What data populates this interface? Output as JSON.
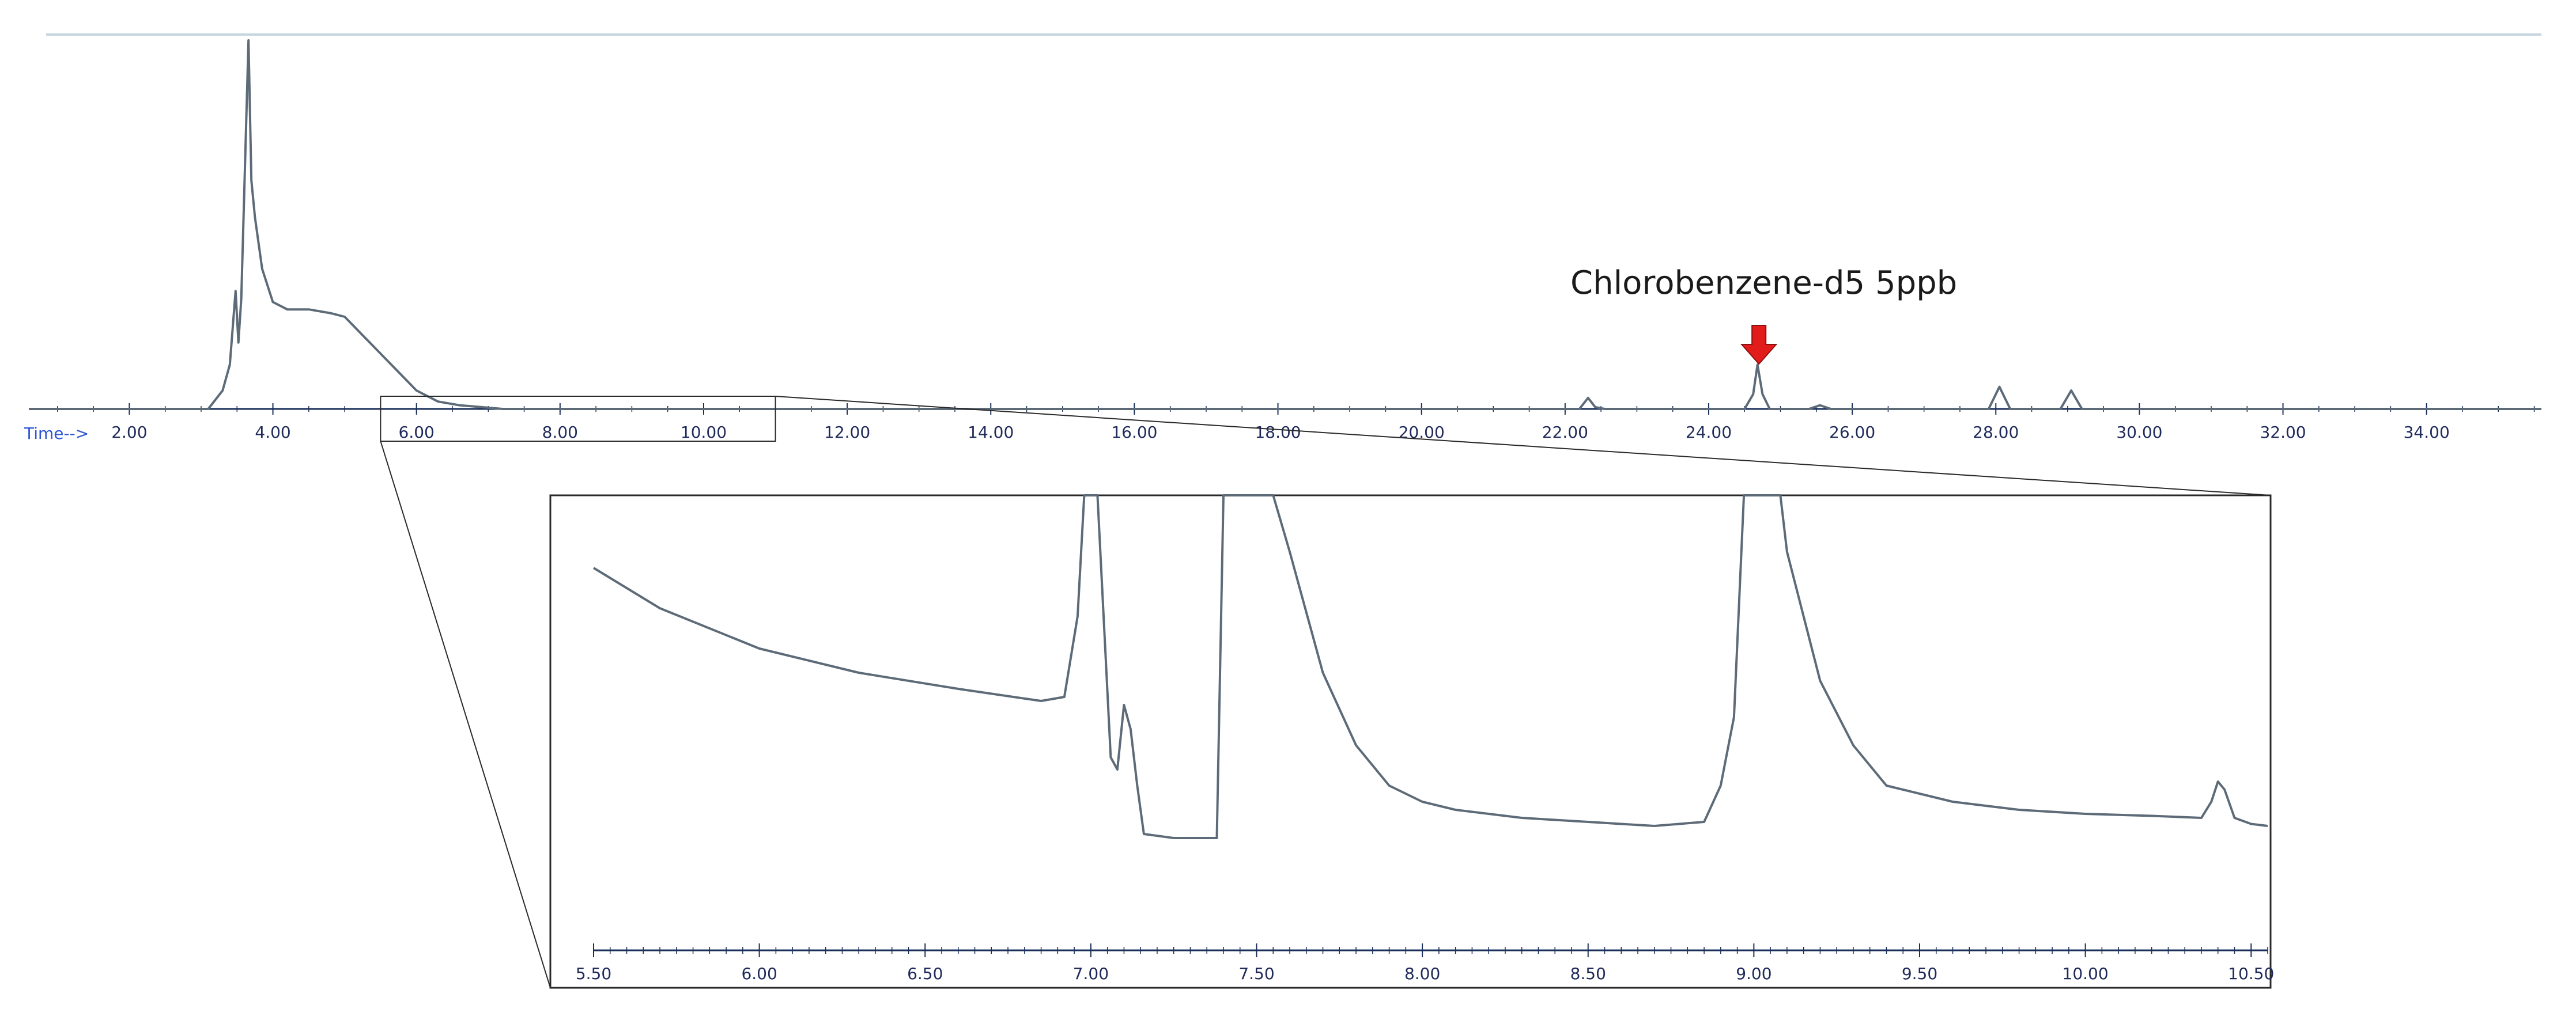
{
  "chart_data": [
    {
      "type": "line",
      "x_axis_label": "Time-->",
      "xlim": [
        0.6,
        35.6
      ],
      "ylim": [
        0,
        100
      ],
      "grid": false,
      "x_ticks": [
        "2.00",
        "4.00",
        "6.00",
        "8.00",
        "10.00",
        "12.00",
        "14.00",
        "16.00",
        "18.00",
        "20.00",
        "22.00",
        "24.00",
        "26.00",
        "28.00",
        "30.00",
        "32.00",
        "34.00"
      ],
      "annotation": {
        "text": "Chlorobenzene-d5 5ppb",
        "x": 24.7,
        "color": "#e21b1b"
      },
      "zoom_window": [
        5.5,
        11.0
      ],
      "series": [
        {
          "color": "#5d6b78",
          "x": [
            0.6,
            3.1,
            3.3,
            3.4,
            3.48,
            3.52,
            3.56,
            3.6,
            3.66,
            3.7,
            3.75,
            3.85,
            4.0,
            4.2,
            4.5,
            4.8,
            5.0,
            5.2,
            5.5,
            5.8,
            6.0,
            6.3,
            6.6,
            6.9,
            7.2,
            8.0,
            22.2,
            22.32,
            22.42,
            22.55,
            24.5,
            24.62,
            24.68,
            24.75,
            24.85,
            25.4,
            25.55,
            25.7,
            27.9,
            28.05,
            28.2,
            28.9,
            29.05,
            29.2,
            35.6
          ],
          "y": [
            0,
            0,
            5,
            12,
            32,
            18,
            30,
            58,
            100,
            62,
            52,
            38,
            29,
            27,
            27,
            26,
            25,
            21,
            15,
            9,
            5,
            2,
            1,
            0.5,
            0,
            0,
            0,
            3,
            0.5,
            0,
            0,
            4,
            12,
            4,
            0,
            0,
            1,
            0,
            0,
            6,
            0,
            0,
            5,
            0,
            0
          ]
        }
      ]
    },
    {
      "type": "line",
      "xlim": [
        5.5,
        10.55
      ],
      "ylim": [
        0,
        100
      ],
      "grid": false,
      "x_ticks": [
        "5.50",
        "6.00",
        "6.50",
        "7.00",
        "7.50",
        "8.00",
        "8.50",
        "9.00",
        "9.50",
        "10.00",
        "10.50"
      ],
      "series": [
        {
          "color": "#5d6b78",
          "x": [
            5.5,
            5.7,
            6.0,
            6.3,
            6.6,
            6.85,
            6.92,
            6.96,
            6.98,
            7.02,
            7.06,
            7.08,
            7.1,
            7.12,
            7.14,
            7.16,
            7.25,
            7.33,
            7.38,
            7.4,
            7.42,
            7.55,
            7.6,
            7.7,
            7.8,
            7.9,
            8.0,
            8.1,
            8.3,
            8.5,
            8.7,
            8.85,
            8.9,
            8.94,
            8.97,
            9.08,
            9.1,
            9.2,
            9.3,
            9.4,
            9.6,
            9.8,
            10.0,
            10.2,
            10.35,
            10.38,
            10.4,
            10.42,
            10.45,
            10.5,
            10.55
          ],
          "y": [
            82,
            72,
            62,
            56,
            52,
            49,
            50,
            70,
            100,
            100,
            35,
            32,
            48,
            42,
            28,
            16,
            15,
            15,
            15,
            100,
            100,
            100,
            86,
            56,
            38,
            28,
            24,
            22,
            20,
            19,
            18,
            19,
            28,
            45,
            100,
            100,
            86,
            54,
            38,
            28,
            24,
            22,
            21,
            20.5,
            20,
            24,
            29,
            27,
            20,
            18.5,
            18
          ]
        }
      ]
    }
  ]
}
